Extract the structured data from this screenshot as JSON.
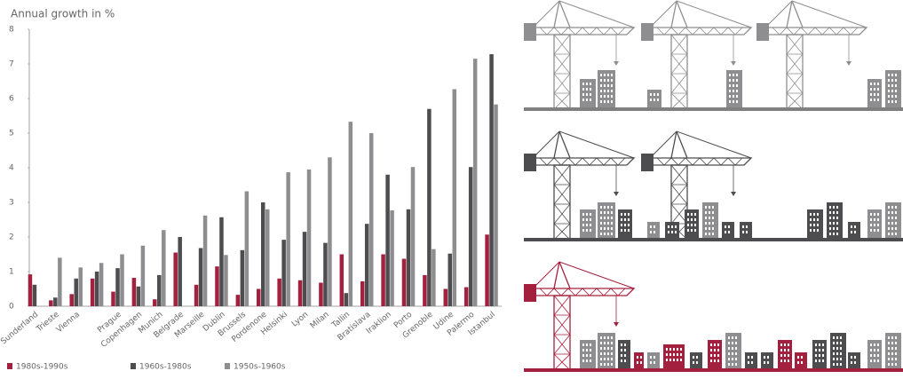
{
  "chart_data": {
    "type": "bar",
    "y_label": "Annual growth in %",
    "categories": [
      "Sunderland",
      "Trieste",
      "Vienna",
      null,
      "Prague",
      "Copenhagen",
      "Munich",
      "Belgrade",
      "Marseille",
      "Dublin",
      "Brussels",
      "Pordenone",
      "Helsinki",
      "Lyon",
      "Milan",
      "Tallin",
      "Bratislava",
      "Iraklion",
      "Porto",
      "Grenoble",
      "Udine",
      "Palermo",
      "Istanbul"
    ],
    "series": [
      {
        "name": "1980s-1990s",
        "color": "#a3203f",
        "values": [
          0.92,
          0.17,
          0.35,
          0.8,
          0.42,
          0.82,
          0.2,
          1.55,
          0.62,
          1.15,
          0.33,
          0.5,
          0.8,
          0.75,
          0.68,
          1.5,
          0.72,
          1.5,
          1.37,
          0.9,
          0.5,
          0.55,
          2.07
        ]
      },
      {
        "name": "1960s-1980s",
        "color": "#4d4d4f",
        "values": [
          0.62,
          0.25,
          0.8,
          1.0,
          1.1,
          0.57,
          0.9,
          2.0,
          1.68,
          2.57,
          1.62,
          3.0,
          1.92,
          2.15,
          1.83,
          0.38,
          2.38,
          3.8,
          2.8,
          5.7,
          1.52,
          4.02,
          7.28
        ]
      },
      {
        "name": "1950s-1960s",
        "color": "#8e8e90",
        "values": [
          null,
          1.4,
          1.12,
          1.25,
          1.5,
          1.75,
          2.2,
          null,
          2.62,
          1.48,
          3.32,
          2.8,
          3.87,
          3.95,
          4.3,
          5.33,
          5.0,
          2.77,
          4.02,
          1.65,
          6.27,
          7.15,
          5.83
        ]
      }
    ],
    "ylim": [
      0,
      8
    ],
    "yticks": [
      0,
      1,
      2,
      3,
      4,
      5,
      6,
      7,
      8
    ],
    "grid": false
  }
}
